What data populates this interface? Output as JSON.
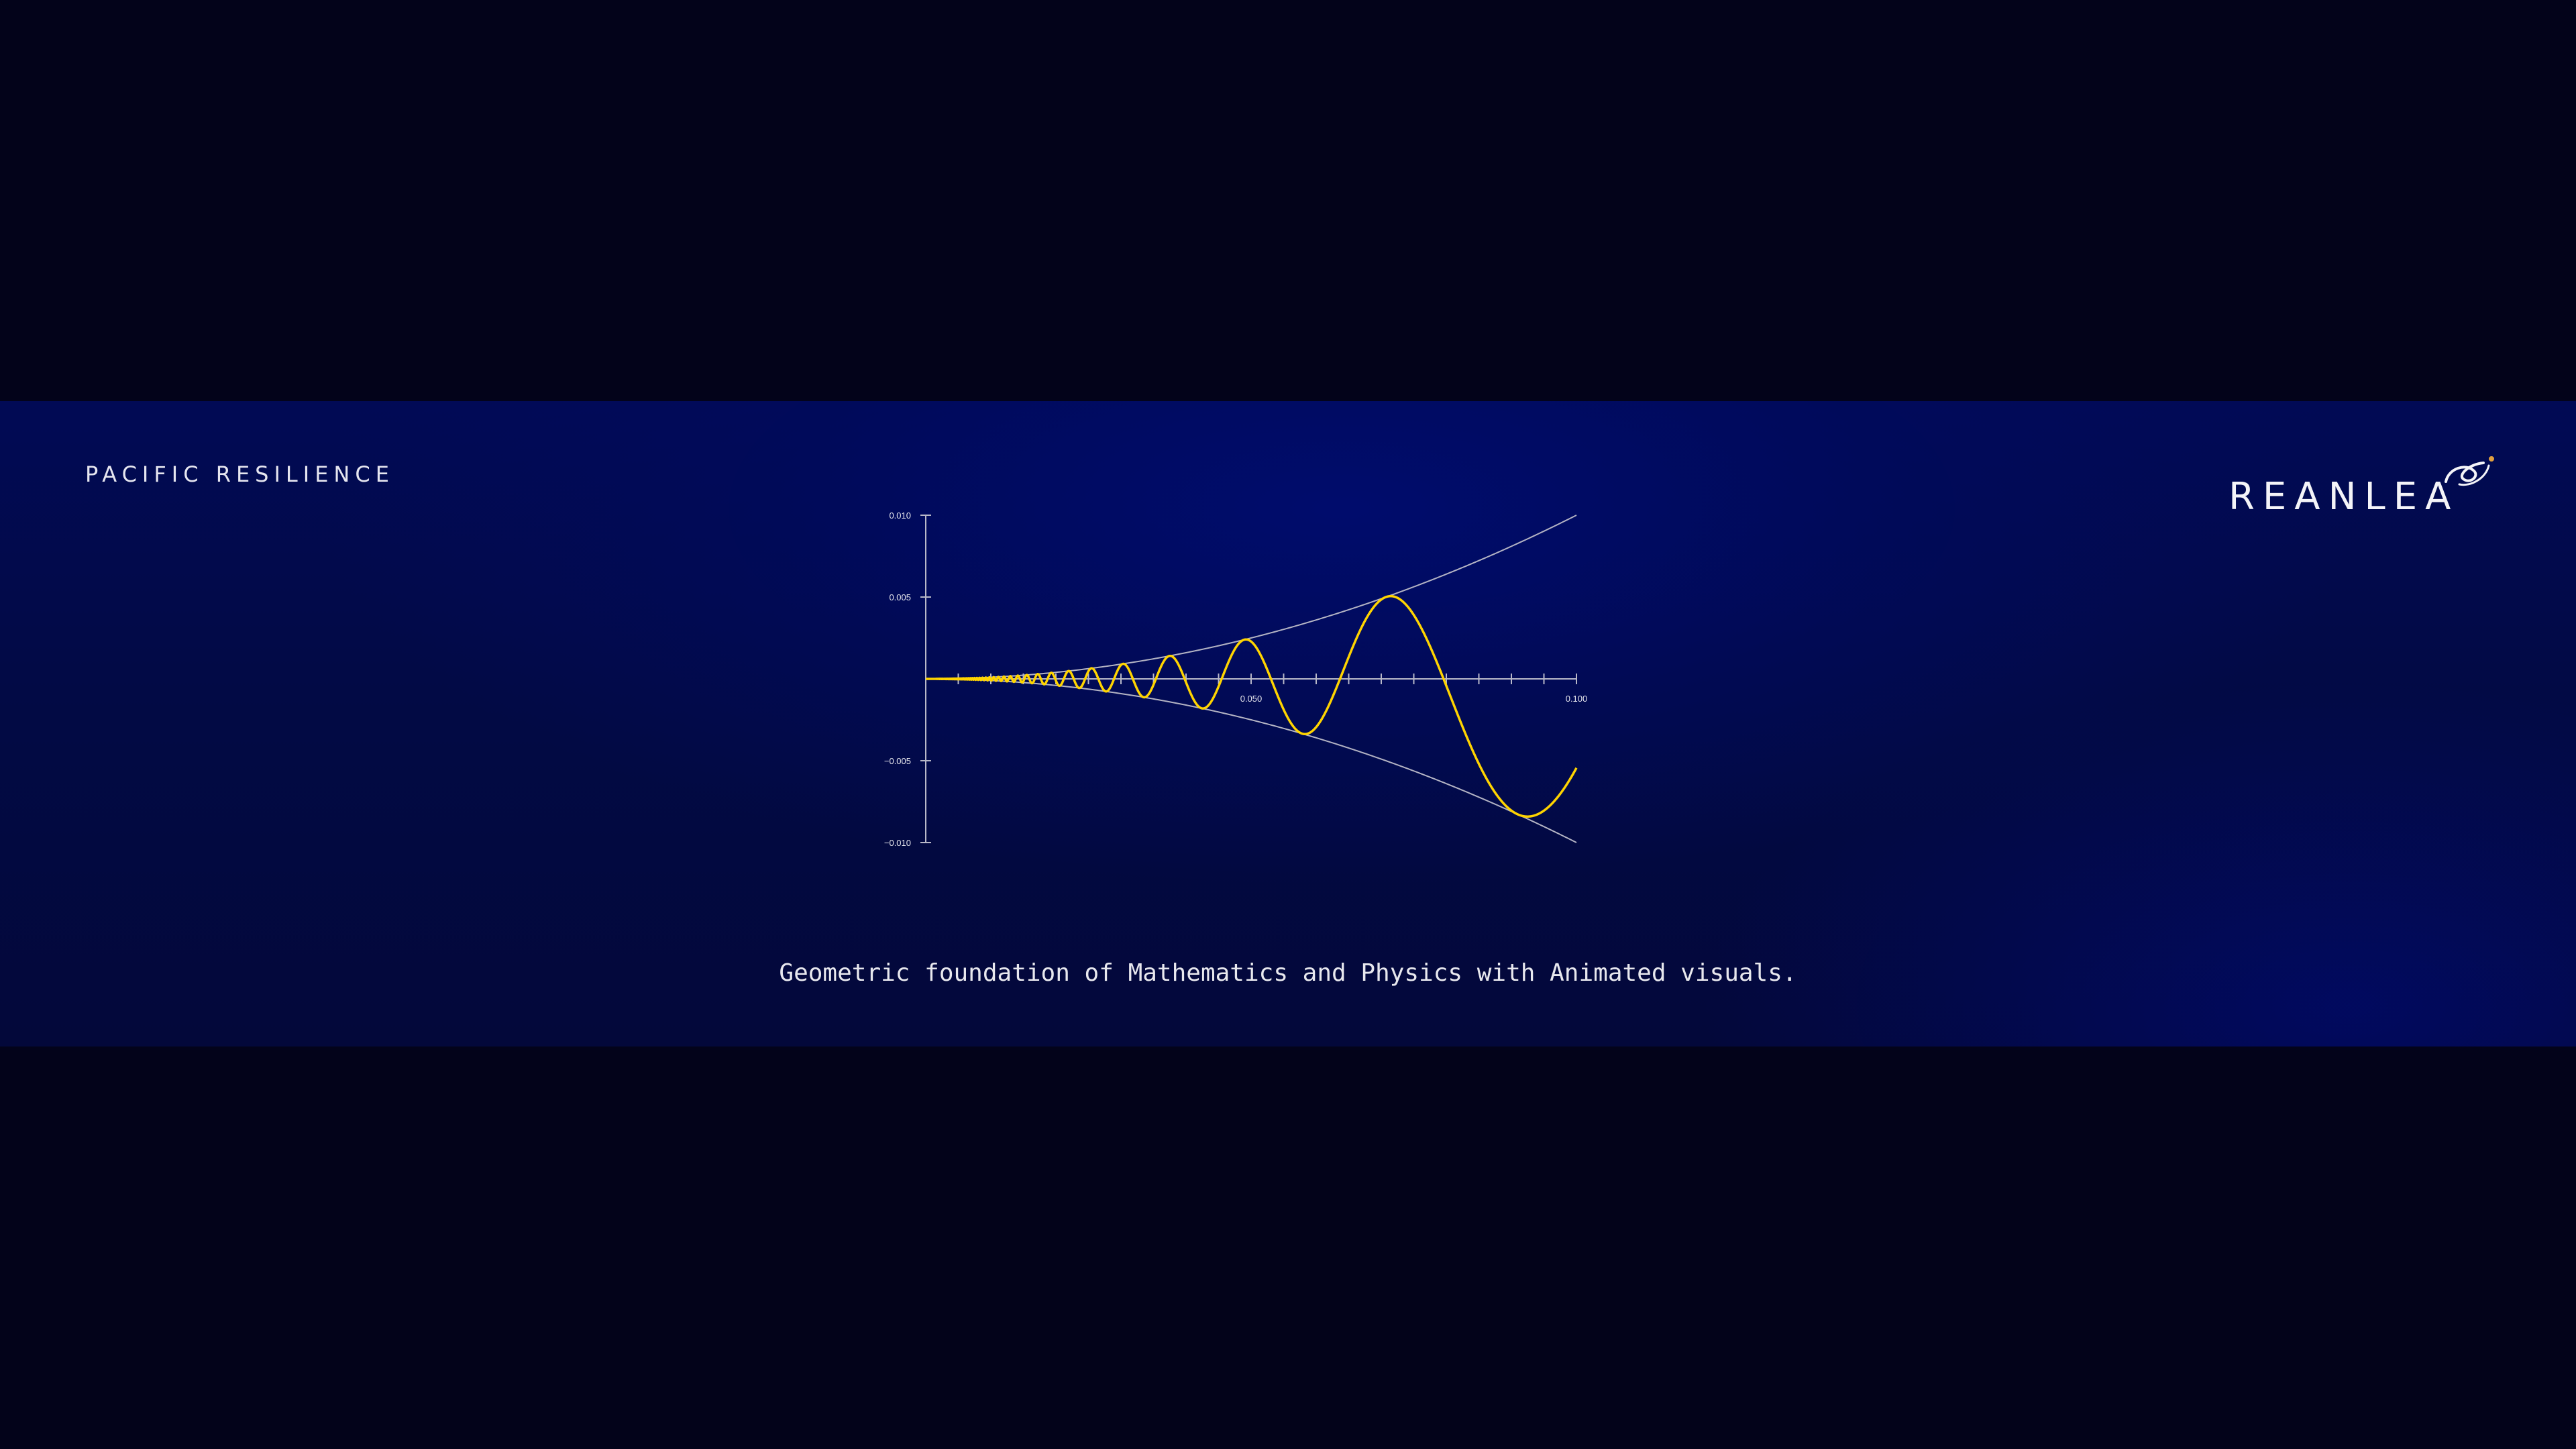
{
  "brand": {
    "left_text": "PACIFIC RESILIENCE",
    "logo_text": "REANLEA",
    "logo_icon": "orbit-swirl-icon"
  },
  "caption": "Geometric foundation of Mathematics and Physics with Animated visuals.",
  "colors": {
    "background": "#03031a",
    "banner": "#010a55",
    "curve": "#ffd400",
    "envelope": "#b4b4c4",
    "axis": "#b8b8c8"
  },
  "chart_data": {
    "type": "line",
    "title": "",
    "xlabel": "",
    "ylabel": "",
    "xlim": [
      0,
      0.1
    ],
    "ylim": [
      -0.01,
      0.01
    ],
    "x_ticks_labeled": [
      0.05,
      0.1
    ],
    "x_tick_labels": [
      "0.050",
      "0.100"
    ],
    "x_minor_tick_step": 0.005,
    "y_ticks": [
      0.01,
      0.005,
      -0.005,
      -0.01
    ],
    "y_tick_labels": [
      "0.010",
      "0.005",
      "−0.005",
      "−0.010"
    ],
    "grid": false,
    "series": [
      {
        "role": "envelope-upper",
        "function": "x^2",
        "color": "#b4b4c4"
      },
      {
        "role": "envelope-lower",
        "function": "-x^2",
        "color": "#b4b4c4"
      },
      {
        "role": "curve",
        "function": "x^2 * sin(1/x)",
        "color": "#ffd400"
      }
    ]
  }
}
